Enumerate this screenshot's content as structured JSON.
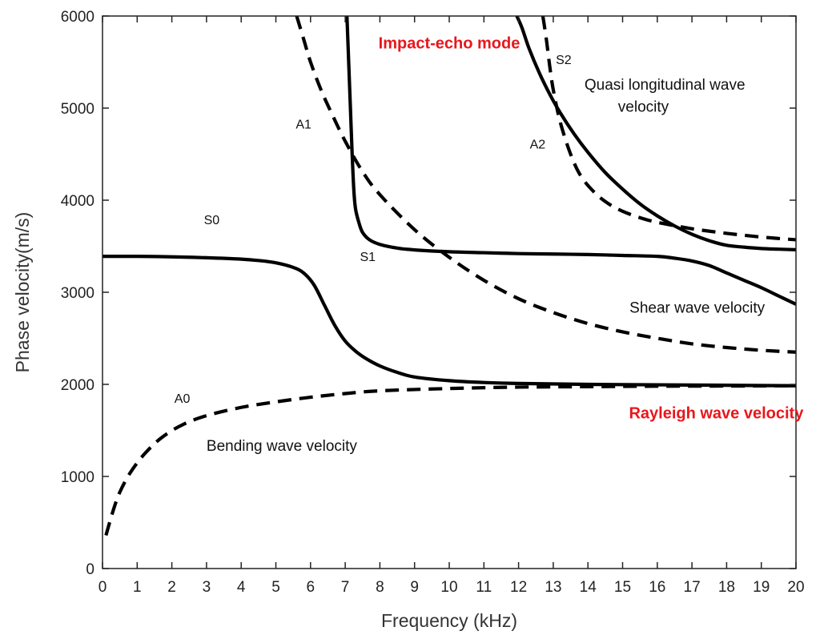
{
  "chart_data": {
    "type": "line",
    "title": "",
    "xlabel": "Frequency (kHz)",
    "ylabel": "Phase velocity(m/s)",
    "xlim": [
      0,
      20
    ],
    "ylim": [
      0,
      6000
    ],
    "xticks": [
      "0",
      "1",
      "2",
      "3",
      "4",
      "5",
      "6",
      "7",
      "8",
      "9",
      "10",
      "11",
      "12",
      "13",
      "14",
      "15",
      "16",
      "17",
      "18",
      "19",
      "20"
    ],
    "yticks": [
      "0",
      "1000",
      "2000",
      "3000",
      "4000",
      "5000",
      "6000"
    ],
    "grid": false,
    "legend": "none",
    "series": [
      {
        "name": "S0",
        "style": "solid",
        "x": [
          0,
          1,
          2,
          3,
          4,
          4.5,
          5,
          5.5,
          5.8,
          6.1,
          6.4,
          6.7,
          7.0,
          7.3,
          7.6,
          8.0,
          8.5,
          9,
          10,
          11,
          12,
          14,
          16,
          18,
          20
        ],
        "y": [
          3390,
          3390,
          3385,
          3375,
          3360,
          3345,
          3320,
          3270,
          3210,
          3080,
          2860,
          2640,
          2470,
          2360,
          2280,
          2200,
          2130,
          2080,
          2040,
          2020,
          2010,
          2000,
          1995,
          1990,
          1985
        ]
      },
      {
        "name": "A0",
        "style": "dashed",
        "x": [
          0.1,
          0.3,
          0.5,
          0.8,
          1.2,
          1.7,
          2.3,
          3,
          4,
          5,
          6,
          7,
          8,
          10,
          12,
          14,
          16,
          18,
          20
        ],
        "y": [
          360,
          620,
          830,
          1040,
          1240,
          1420,
          1560,
          1660,
          1750,
          1810,
          1860,
          1900,
          1930,
          1955,
          1970,
          1975,
          1980,
          1982,
          1985
        ]
      },
      {
        "name": "A1",
        "style": "dashed",
        "x": [
          5.6,
          5.8,
          6.0,
          6.3,
          6.6,
          7.0,
          7.5,
          8,
          9,
          10,
          11,
          12,
          13,
          14,
          15,
          16,
          17,
          18,
          19,
          20
        ],
        "y": [
          6000,
          5750,
          5500,
          5200,
          4950,
          4640,
          4310,
          4060,
          3680,
          3380,
          3130,
          2930,
          2780,
          2660,
          2570,
          2500,
          2440,
          2400,
          2370,
          2350
        ]
      },
      {
        "name": "S1",
        "style": "solid",
        "x": [
          7.05,
          7.1,
          7.15,
          7.2,
          7.25,
          7.3,
          7.4,
          7.5,
          7.7,
          8,
          8.5,
          9,
          10,
          11,
          12,
          13,
          14,
          15,
          16,
          16.5,
          17,
          17.5,
          18,
          18.5,
          19,
          19.5,
          20
        ],
        "y": [
          6000,
          5500,
          5000,
          4500,
          4100,
          3900,
          3750,
          3650,
          3570,
          3520,
          3480,
          3460,
          3440,
          3430,
          3420,
          3415,
          3410,
          3400,
          3390,
          3370,
          3340,
          3290,
          3210,
          3130,
          3050,
          2960,
          2870
        ]
      },
      {
        "name": "A2",
        "style": "dashed",
        "x": [
          12.7,
          12.8,
          12.9,
          13.0,
          13.2,
          13.5,
          13.8,
          14.2,
          14.6,
          15,
          15.5,
          16,
          17,
          18,
          19,
          20
        ],
        "y": [
          6000,
          5750,
          5450,
          5200,
          4850,
          4500,
          4260,
          4080,
          3960,
          3880,
          3810,
          3760,
          3690,
          3640,
          3600,
          3570
        ]
      },
      {
        "name": "S2",
        "style": "solid",
        "x": [
          11.95,
          12.1,
          12.3,
          12.6,
          12.9,
          13.2,
          13.6,
          14,
          14.5,
          15,
          15.5,
          16,
          16.5,
          17,
          17.5,
          18,
          18.5,
          19,
          19.5,
          20
        ],
        "y": [
          6000,
          5870,
          5650,
          5380,
          5150,
          4950,
          4720,
          4520,
          4300,
          4120,
          3960,
          3830,
          3720,
          3630,
          3560,
          3510,
          3490,
          3475,
          3468,
          3462
        ]
      }
    ],
    "annotations": [
      {
        "text": "Impact-echo mode",
        "x": 10.0,
        "y": 5650,
        "color": "#e8161b",
        "bold": true,
        "anchor": "middle"
      },
      {
        "text": "Quasi longitudinal wave",
        "x": 13.9,
        "y": 5200,
        "color": "#111111",
        "anchor": "start"
      },
      {
        "text": "velocity",
        "x": 15.6,
        "y": 4960,
        "color": "#111111",
        "anchor": "middle"
      },
      {
        "text": "Shear wave velocity",
        "x": 15.2,
        "y": 2780,
        "color": "#111111",
        "anchor": "start"
      },
      {
        "text": "Rayleigh wave velocity",
        "x": 17.7,
        "y": 1630,
        "color": "#e8161b",
        "bold": true,
        "anchor": "middle"
      },
      {
        "text": "Bending wave velocity",
        "x": 3.0,
        "y": 1280,
        "color": "#111111",
        "anchor": "start"
      }
    ],
    "series_labels": [
      {
        "text": "S0",
        "x": 3.15,
        "y": 3740
      },
      {
        "text": "S1",
        "x": 7.65,
        "y": 3340
      },
      {
        "text": "S2",
        "x": 13.3,
        "y": 5480
      },
      {
        "text": "A0",
        "x": 2.3,
        "y": 1800
      },
      {
        "text": "A1",
        "x": 5.8,
        "y": 4780
      },
      {
        "text": "A2",
        "x": 12.55,
        "y": 4560
      }
    ],
    "line_color": "#000000"
  }
}
